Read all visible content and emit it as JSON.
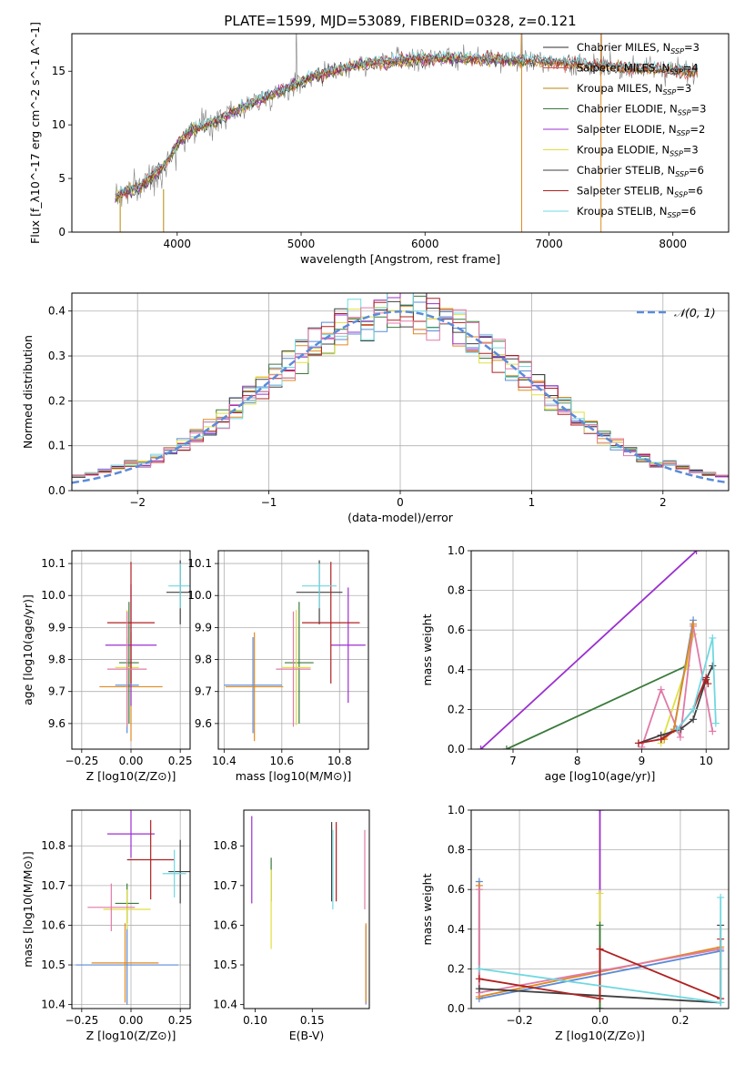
{
  "chart_data": [
    {
      "id": "spectrum",
      "type": "line",
      "title": "PLATE=1599, MJD=53089, FIBERID=0328, z=0.121",
      "xlabel": "wavelength [Angstrom, rest frame]",
      "ylabel": "Flux [f_λ10^-17 erg cm^-2 s^-1 A^-1]",
      "xlim": [
        3150,
        8450
      ],
      "ylim": [
        0,
        18.5
      ],
      "xticks": [
        4000,
        5000,
        6000,
        7000,
        8000
      ],
      "yticks": [
        0,
        5,
        10,
        15
      ],
      "grid": false,
      "legend_position": "right",
      "series": [
        {
          "name": "Chabrier MILES, N_SSP=3",
          "color": "#2f2f2f",
          "wl_range": [
            3470,
            8200
          ]
        },
        {
          "name": "Salpeter MILES, N_SSP=4",
          "color": "#d9534f",
          "wl_range": [
            3470,
            8200
          ]
        },
        {
          "name": "Kroupa MILES, N_SSP=3",
          "color": "#b8860b",
          "wl_range": [
            3470,
            8200
          ]
        },
        {
          "name": "Chabrier ELODIE, N_SSP=3",
          "color": "#3a7a3a",
          "wl_range": [
            3470,
            6800
          ]
        },
        {
          "name": "Salpeter ELODIE, N_SSP=2",
          "color": "#9b30d0",
          "wl_range": [
            3470,
            6800
          ]
        },
        {
          "name": "Kroupa ELODIE, N_SSP=3",
          "color": "#e0e040",
          "wl_range": [
            3470,
            6800
          ]
        },
        {
          "name": "Chabrier STELIB, N_SSP=6",
          "color": "#404040",
          "wl_range": [
            3470,
            8200
          ]
        },
        {
          "name": "Salpeter STELIB, N_SSP=6",
          "color": "#b02020",
          "wl_range": [
            3470,
            8200
          ]
        },
        {
          "name": "Kroupa STELIB, N_SSP=6",
          "color": "#70d8e0",
          "wl_range": [
            3470,
            8200
          ]
        }
      ],
      "data_color": "#808080",
      "continuum": [
        [
          3500,
          3.3
        ],
        [
          3600,
          3.8
        ],
        [
          3700,
          4.3
        ],
        [
          3800,
          5.2
        ],
        [
          3900,
          6.3
        ],
        [
          4000,
          8.2
        ],
        [
          4100,
          9.4
        ],
        [
          4300,
          10.3
        ],
        [
          4500,
          11.5
        ],
        [
          4700,
          12.5
        ],
        [
          4900,
          13.5
        ],
        [
          5100,
          14.6
        ],
        [
          5300,
          15.1
        ],
        [
          5500,
          15.7
        ],
        [
          5800,
          16.0
        ],
        [
          6000,
          16.2
        ],
        [
          6300,
          16.2
        ],
        [
          6600,
          16.1
        ],
        [
          7000,
          15.9
        ],
        [
          7400,
          15.5
        ],
        [
          7800,
          15.2
        ],
        [
          8200,
          15.0
        ]
      ],
      "emission_spikes": [
        4960,
        6780,
        7420
      ]
    },
    {
      "id": "residuals",
      "type": "histogram",
      "xlabel": "(data-model)/error",
      "ylabel": "Normed distribution",
      "xlim": [
        -2.5,
        2.5
      ],
      "ylim": [
        0,
        0.44
      ],
      "xticks": [
        -2,
        -1,
        0,
        1,
        2
      ],
      "yticks": [
        0.0,
        0.1,
        0.2,
        0.3,
        0.4
      ],
      "grid": true,
      "legend": [
        {
          "name": "𝒩(0, 1)",
          "color": "#5b8bd8",
          "style": "dashed"
        }
      ],
      "bin_width": 0.1,
      "series_colors": [
        "#5b8bd8",
        "#e08a20",
        "#3a7a3a",
        "#9b30d0",
        "#e0e040",
        "#404040",
        "#b02020",
        "#70d8e0",
        "#e07aa8"
      ]
    },
    {
      "id": "z-vs-age",
      "type": "scatter",
      "xlabel": "Z [log10(Z/Z⊙)]",
      "ylabel": "age [log10(age/yr)]",
      "xlim": [
        -0.3,
        0.3
      ],
      "ylim": [
        9.52,
        10.14
      ],
      "xticks": [
        -0.25,
        0.0,
        0.25
      ],
      "yticks": [
        9.6,
        9.7,
        9.8,
        9.9,
        10.0,
        10.1
      ],
      "grid": true,
      "points": [
        {
          "x": -0.02,
          "y": 9.72,
          "xerr": 0.06,
          "yerr": 0.15,
          "color": "#5b8bd8"
        },
        {
          "x": 0.0,
          "y": 9.715,
          "xerr": 0.16,
          "yerr": 0.17,
          "color": "#e08a20"
        },
        {
          "x": -0.01,
          "y": 9.79,
          "xerr": 0.05,
          "yerr": 0.19,
          "color": "#3a7a3a"
        },
        {
          "x": 0.0,
          "y": 9.845,
          "xerr": 0.13,
          "yerr": 0.19,
          "color": "#9b30d0"
        },
        {
          "x": -0.02,
          "y": 9.775,
          "xerr": 0.06,
          "yerr": 0.18,
          "color": "#e0e040"
        },
        {
          "x": 0.25,
          "y": 10.01,
          "xerr": 0.07,
          "yerr": 0.1,
          "color": "#404040"
        },
        {
          "x": 0.0,
          "y": 9.915,
          "xerr": 0.12,
          "yerr": 0.19,
          "color": "#b02020"
        },
        {
          "x": 0.25,
          "y": 10.03,
          "xerr": 0.06,
          "yerr": 0.07,
          "color": "#70d8e0"
        },
        {
          "x": -0.02,
          "y": 9.77,
          "xerr": 0.1,
          "yerr": 0.18,
          "color": "#e07aa8"
        }
      ]
    },
    {
      "id": "mass-vs-age",
      "type": "scatter",
      "xlabel": "mass [log10(M/M⊙)]",
      "ylabel": "",
      "xlim": [
        10.38,
        10.9
      ],
      "ylim": [
        9.52,
        10.14
      ],
      "xticks": [
        10.4,
        10.6,
        10.8
      ],
      "yticks": [
        9.6,
        9.7,
        9.8,
        9.9,
        10.0,
        10.1
      ],
      "grid": true,
      "points": [
        {
          "x": 10.5,
          "y": 9.72,
          "xerr": 0.1,
          "yerr": 0.15,
          "color": "#5b8bd8"
        },
        {
          "x": 10.505,
          "y": 9.715,
          "xerr": 0.1,
          "yerr": 0.17,
          "color": "#e08a20"
        },
        {
          "x": 10.66,
          "y": 9.79,
          "xerr": 0.05,
          "yerr": 0.19,
          "color": "#3a7a3a"
        },
        {
          "x": 10.83,
          "y": 9.845,
          "xerr": 0.06,
          "yerr": 0.18,
          "color": "#9b30d0"
        },
        {
          "x": 10.65,
          "y": 9.775,
          "xerr": 0.05,
          "yerr": 0.18,
          "color": "#e0e040"
        },
        {
          "x": 10.73,
          "y": 10.01,
          "xerr": 0.08,
          "yerr": 0.1,
          "color": "#404040"
        },
        {
          "x": 10.77,
          "y": 9.915,
          "xerr": 0.1,
          "yerr": 0.19,
          "color": "#b02020"
        },
        {
          "x": 10.73,
          "y": 10.03,
          "xerr": 0.06,
          "yerr": 0.07,
          "color": "#70d8e0"
        },
        {
          "x": 10.64,
          "y": 9.77,
          "xerr": 0.06,
          "yerr": 0.18,
          "color": "#e07aa8"
        }
      ]
    },
    {
      "id": "age-vs-massweight",
      "type": "line",
      "xlabel": "age [log10(age/yr)]",
      "ylabel": "mass weight",
      "xlim": [
        6.35,
        10.35
      ],
      "ylim": [
        0,
        1.0
      ],
      "xticks": [
        7,
        8,
        9,
        10
      ],
      "yticks": [
        0.0,
        0.2,
        0.4,
        0.6,
        0.8,
        1.0
      ],
      "grid": true,
      "series": [
        {
          "color": "#9b30d0",
          "points": [
            [
              6.5,
              0.0
            ],
            [
              9.85,
              1.0
            ]
          ]
        },
        {
          "color": "#3a7a3a",
          "points": [
            [
              6.9,
              0.0
            ],
            [
              9.7,
              0.42
            ],
            [
              9.8,
              0.58
            ]
          ]
        },
        {
          "color": "#e0e040",
          "points": [
            [
              9.3,
              0.03
            ],
            [
              9.7,
              0.42
            ],
            [
              9.8,
              0.58
            ]
          ]
        },
        {
          "color": "#e07aa8",
          "points": [
            [
              9.0,
              0.01
            ],
            [
              9.3,
              0.3
            ],
            [
              9.6,
              0.06
            ],
            [
              9.8,
              0.62
            ],
            [
              10.1,
              0.09
            ]
          ]
        },
        {
          "color": "#5b8bd8",
          "points": [
            [
              9.3,
              0.05
            ],
            [
              9.5,
              0.1
            ],
            [
              9.8,
              0.65
            ]
          ]
        },
        {
          "color": "#e08a20",
          "points": [
            [
              9.35,
              0.05
            ],
            [
              9.5,
              0.1
            ],
            [
              9.8,
              0.63
            ]
          ]
        },
        {
          "color": "#404040",
          "points": [
            [
              8.95,
              0.03
            ],
            [
              9.3,
              0.07
            ],
            [
              9.6,
              0.1
            ],
            [
              9.8,
              0.15
            ],
            [
              10.0,
              0.35
            ],
            [
              10.1,
              0.42
            ]
          ]
        },
        {
          "color": "#b02020",
          "points": [
            [
              8.95,
              0.03
            ],
            [
              9.3,
              0.05
            ],
            [
              9.55,
              0.1
            ],
            [
              9.8,
              0.2
            ],
            [
              10.0,
              0.36
            ],
            [
              10.03,
              0.33
            ]
          ]
        },
        {
          "color": "#70d8e0",
          "points": [
            [
              9.55,
              0.1
            ],
            [
              9.8,
              0.2
            ],
            [
              10.1,
              0.56
            ],
            [
              10.15,
              0.13
            ]
          ]
        }
      ]
    },
    {
      "id": "z-vs-mass",
      "type": "scatter",
      "xlabel": "Z [log10(Z/Z⊙)]",
      "ylabel": "mass [log10(M/M⊙)]",
      "xlim": [
        -0.3,
        0.3
      ],
      "ylim": [
        10.39,
        10.89
      ],
      "xticks": [
        -0.25,
        0.0,
        0.25
      ],
      "yticks": [
        10.4,
        10.5,
        10.6,
        10.7,
        10.8
      ],
      "grid": true,
      "points": [
        {
          "x": -0.02,
          "y": 10.5,
          "xerr": 0.26,
          "yerr": 0.1,
          "color": "#5b8bd8"
        },
        {
          "x": -0.03,
          "y": 10.505,
          "xerr": 0.17,
          "yerr": 0.1,
          "color": "#e08a20"
        },
        {
          "x": -0.02,
          "y": 10.655,
          "xerr": 0.06,
          "yerr": 0.05,
          "color": "#3a7a3a"
        },
        {
          "x": 0.0,
          "y": 10.83,
          "xerr": 0.12,
          "yerr": 0.06,
          "color": "#9b30d0"
        },
        {
          "x": -0.02,
          "y": 10.64,
          "xerr": 0.12,
          "yerr": 0.05,
          "color": "#e0e040"
        },
        {
          "x": 0.25,
          "y": 10.735,
          "xerr": 0.06,
          "yerr": 0.08,
          "color": "#404040"
        },
        {
          "x": 0.1,
          "y": 10.765,
          "xerr": 0.12,
          "yerr": 0.1,
          "color": "#b02020"
        },
        {
          "x": 0.22,
          "y": 10.73,
          "xerr": 0.06,
          "yerr": 0.06,
          "color": "#70d8e0"
        },
        {
          "x": -0.1,
          "y": 10.645,
          "xerr": 0.12,
          "yerr": 0.06,
          "color": "#e07aa8"
        }
      ]
    },
    {
      "id": "ebv-vs-mass",
      "type": "scatter",
      "xlabel": "E(B-V)",
      "ylabel": "",
      "xlim": [
        0.09,
        0.2
      ],
      "ylim": [
        10.39,
        10.89
      ],
      "xticks": [
        0.1,
        0.15
      ],
      "yticks": [
        10.4,
        10.5,
        10.6,
        10.7,
        10.8
      ],
      "grid": false,
      "points": [
        {
          "x": 0.197,
          "y": 10.5,
          "xerr": 0,
          "yerr": 0.1,
          "color": "#5b8bd8"
        },
        {
          "x": 0.197,
          "y": 10.505,
          "xerr": 0,
          "yerr": 0.1,
          "color": "#e08a20"
        },
        {
          "x": 0.114,
          "y": 10.715,
          "xerr": 0,
          "yerr": 0.055,
          "color": "#3a7a3a"
        },
        {
          "x": 0.097,
          "y": 10.765,
          "xerr": 0,
          "yerr": 0.11,
          "color": "#9b30d0"
        },
        {
          "x": 0.114,
          "y": 10.64,
          "xerr": 0,
          "yerr": 0.1,
          "color": "#e0e040"
        },
        {
          "x": 0.167,
          "y": 10.76,
          "xerr": 0,
          "yerr": 0.1,
          "color": "#404040"
        },
        {
          "x": 0.171,
          "y": 10.76,
          "xerr": 0,
          "yerr": 0.1,
          "color": "#b02020"
        },
        {
          "x": 0.168,
          "y": 10.74,
          "xerr": 0,
          "yerr": 0.1,
          "color": "#70d8e0"
        },
        {
          "x": 0.196,
          "y": 10.74,
          "xerr": 0,
          "yerr": 0.1,
          "color": "#e07aa8"
        }
      ]
    },
    {
      "id": "z-vs-massweight",
      "type": "line",
      "xlabel": "Z [log10(Z/Z⊙)]",
      "ylabel": "mass weight",
      "xlim": [
        -0.32,
        0.32
      ],
      "ylim": [
        0,
        1.0
      ],
      "xticks": [
        -0.2,
        0.0,
        0.2
      ],
      "yticks": [
        0.0,
        0.2,
        0.4,
        0.6,
        0.8,
        1.0
      ],
      "grid": true,
      "series": [
        {
          "color": "#9b30d0",
          "points": [
            [
              0.0,
              0.0
            ],
            [
              0.0,
              1.0
            ]
          ]
        },
        {
          "color": "#e0e040",
          "points": [
            [
              0.0,
              0.0
            ],
            [
              0.0,
              0.58
            ]
          ]
        },
        {
          "color": "#3a7a3a",
          "points": [
            [
              0.0,
              0.0
            ],
            [
              0.0,
              0.42
            ]
          ]
        },
        {
          "color": "#5b8bd8",
          "points": [
            [
              -0.3,
              0.64
            ],
            [
              -0.3,
              0.05
            ],
            [
              0.3,
              0.29
            ]
          ]
        },
        {
          "color": "#e08a20",
          "points": [
            [
              -0.3,
              0.62
            ],
            [
              -0.3,
              0.06
            ],
            [
              0.3,
              0.31
            ]
          ]
        },
        {
          "color": "#e07aa8",
          "points": [
            [
              -0.3,
              0.6
            ],
            [
              -0.3,
              0.08
            ],
            [
              0.3,
              0.3
            ]
          ]
        },
        {
          "color": "#404040",
          "points": [
            [
              -0.3,
              0.1
            ],
            [
              0.3,
              0.03
            ],
            [
              0.3,
              0.42
            ]
          ]
        },
        {
          "color": "#b02020",
          "points": [
            [
              -0.3,
              0.15
            ],
            [
              0.0,
              0.05
            ],
            [
              0.0,
              0.3
            ],
            [
              0.3,
              0.05
            ],
            [
              0.3,
              0.35
            ]
          ]
        },
        {
          "color": "#70d8e0",
          "points": [
            [
              -0.3,
              0.2
            ],
            [
              0.3,
              0.03
            ],
            [
              0.3,
              0.56
            ]
          ]
        }
      ]
    }
  ]
}
